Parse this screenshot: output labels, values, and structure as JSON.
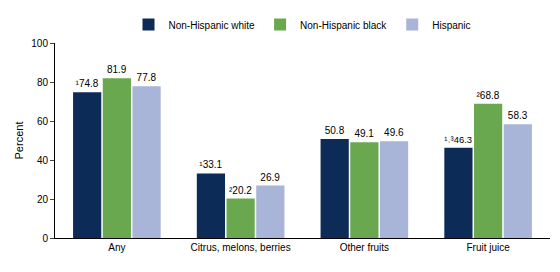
{
  "chart_data": {
    "type": "bar",
    "categories": [
      "Any",
      "Citrus, melons, berries",
      "Other fruits",
      "Fruit juice"
    ],
    "series": [
      {
        "name": "Non-Hispanic white",
        "color": "#0d2b57",
        "values": [
          74.8,
          33.1,
          50.8,
          46.3
        ],
        "value_labels": [
          "¹74.8",
          "¹33.1",
          "50.8",
          "¹˒³46.3"
        ]
      },
      {
        "name": "Non-Hispanic black",
        "color": "#6aa84f",
        "values": [
          81.9,
          20.2,
          49.1,
          68.8
        ],
        "value_labels": [
          "81.9",
          "²20.2",
          "49.1",
          "²68.8"
        ]
      },
      {
        "name": "Hispanic",
        "color": "#a9b4d9",
        "values": [
          77.8,
          26.9,
          49.6,
          58.3
        ],
        "value_labels": [
          "77.8",
          "26.9",
          "49.6",
          "58.3"
        ]
      }
    ],
    "y_label": "Percent",
    "ylim": [
      0,
      100
    ],
    "yticks": [
      0,
      20,
      40,
      60,
      80,
      100
    ],
    "grid": false,
    "legend": "top",
    "data_labels": true
  }
}
